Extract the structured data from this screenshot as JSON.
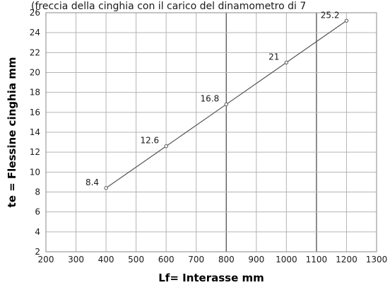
{
  "header_text": "(freccia della cinghia con il carico del dinamometro di 7",
  "chart_data": {
    "type": "line",
    "title": "",
    "xlabel": "Lf= Interasse mm",
    "ylabel": "te = Flessine cinghia mm",
    "xlim": [
      200,
      1300
    ],
    "ylim": [
      2,
      26
    ],
    "xticks": [
      200,
      300,
      400,
      500,
      600,
      700,
      800,
      900,
      1000,
      1100,
      1200,
      1300
    ],
    "yticks": [
      2,
      4,
      6,
      8,
      10,
      12,
      14,
      16,
      18,
      20,
      22,
      24,
      26
    ],
    "major_x_gridlines": [
      800,
      1100
    ],
    "grid": true,
    "series": [
      {
        "x": [
          400,
          600,
          800,
          1000,
          1200
        ],
        "values": [
          8.4,
          12.6,
          16.8,
          21,
          25.2
        ],
        "labels": [
          "8.4",
          "12.6",
          "16.8",
          "21",
          "25.2"
        ],
        "color": "#555555"
      }
    ]
  }
}
